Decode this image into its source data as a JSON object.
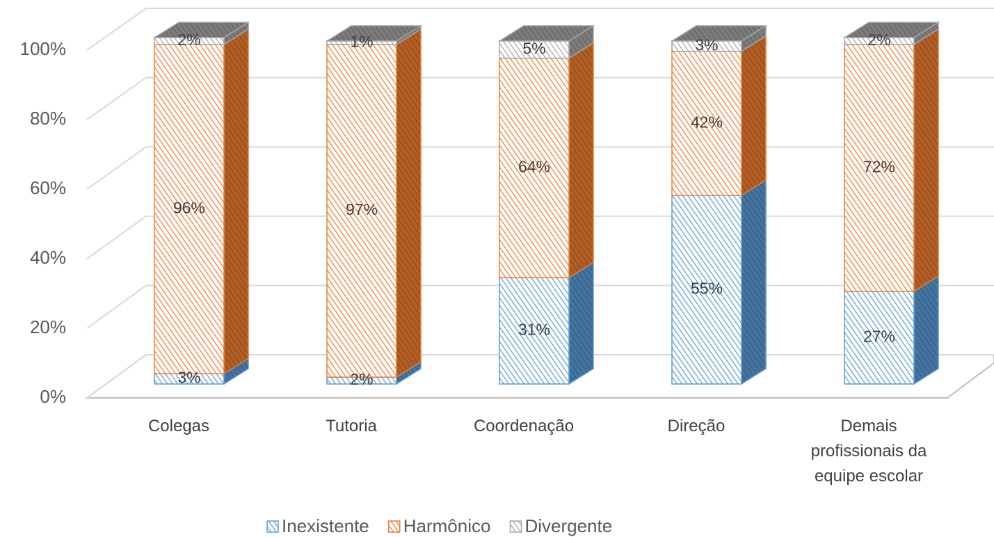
{
  "chart_data": {
    "type": "bar3d_stacked",
    "categories": [
      "Colegas",
      "Tutoria",
      "Coordenação",
      "Direção",
      "Demais profissionais da equipe escolar"
    ],
    "series": [
      {
        "name": "Inexistente",
        "color": "#5b9bd5",
        "values": [
          3,
          2,
          31,
          55,
          27
        ],
        "value_labels": [
          "3%",
          "2%",
          "31%",
          "55%",
          "27%"
        ]
      },
      {
        "name": "Harmônico",
        "color": "#ed7d31",
        "values": [
          96,
          97,
          64,
          42,
          72
        ],
        "value_labels": [
          "96%",
          "97%",
          "64%",
          "42%",
          "72%"
        ]
      },
      {
        "name": "Divergente",
        "color": "#a5a5a5",
        "values": [
          2,
          1,
          5,
          3,
          2
        ],
        "value_labels": [
          "2%",
          "1%",
          "5%",
          "3%",
          "2%"
        ]
      }
    ],
    "ylim": [
      0,
      100
    ],
    "yticks": [
      {
        "value": 0,
        "label": "0%"
      },
      {
        "value": 20,
        "label": "20%"
      },
      {
        "value": 40,
        "label": "40%"
      },
      {
        "value": 60,
        "label": "60%"
      },
      {
        "value": 80,
        "label": "80%"
      },
      {
        "value": 100,
        "label": "100%"
      }
    ],
    "grid": true,
    "legend": "bottom"
  }
}
